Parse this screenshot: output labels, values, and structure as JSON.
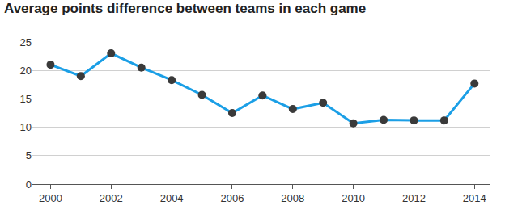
{
  "chart_data": {
    "type": "line",
    "title": "Average points difference between teams in each game",
    "x": [
      2000,
      2001,
      2002,
      2003,
      2004,
      2005,
      2006,
      2007,
      2008,
      2009,
      2010,
      2011,
      2012,
      2013,
      2014
    ],
    "series": [
      {
        "name": "Average points difference",
        "color": "#1b9fe6",
        "marker": "circle",
        "line_style": "solid",
        "values": [
          21,
          19,
          23,
          20.5,
          18.3,
          15.7,
          12.5,
          15.6,
          13.2,
          14.3,
          10.7,
          11.3,
          11.2,
          11.2,
          17.7
        ]
      }
    ],
    "xlim": [
      1999.4,
      2014.5
    ],
    "xticks": [
      2000,
      2002,
      2004,
      2006,
      2008,
      2010,
      2012,
      2014
    ],
    "ylim": [
      0,
      25
    ],
    "yticks": [
      0,
      5,
      10,
      15,
      20,
      25
    ],
    "grid": true
  }
}
